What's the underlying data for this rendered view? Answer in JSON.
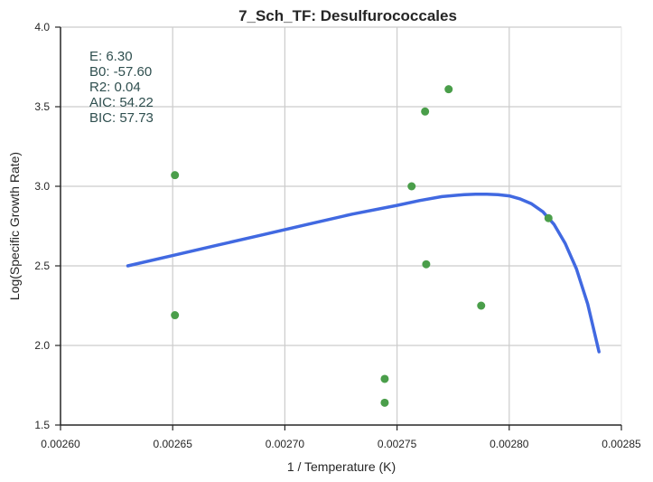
{
  "chart_data": {
    "type": "scatter",
    "title": "7_Sch_TF: Desulfurococcales",
    "xlabel": "1 / Temperature (K)",
    "ylabel": "Log(Specific Growth Rate)",
    "xlim": [
      0.0026,
      0.00285
    ],
    "ylim": [
      1.5,
      4.0
    ],
    "xticks": [
      0.0026,
      0.00265,
      0.0027,
      0.00275,
      0.0028,
      0.00285
    ],
    "xtick_labels": [
      "0.00260",
      "0.00265",
      "0.00270",
      "0.00275",
      "0.00280",
      "0.00285"
    ],
    "yticks": [
      1.5,
      2.0,
      2.5,
      3.0,
      3.5,
      4.0
    ],
    "ytick_labels": [
      "1.5",
      "2.0",
      "2.5",
      "3.0",
      "3.5",
      "4.0"
    ],
    "grid": true,
    "colors": {
      "points": "#4a9e4a",
      "curve": "#4169e1",
      "stats_text": "#2f4f4f",
      "axis": "#262626",
      "grid": "#cccccc"
    },
    "stats": [
      "E:  6.30",
      "B0:  -57.60",
      "R2:  0.04",
      "AIC: 54.22",
      "BIC: 57.73"
    ],
    "series": [
      {
        "type": "scatter",
        "x": [
          0.002651,
          0.002651,
          0.0027445,
          0.0027445,
          0.0027565,
          0.0027625,
          0.002763,
          0.002773,
          0.0027875,
          0.0028175
        ],
        "y": [
          3.07,
          2.19,
          1.79,
          1.64,
          3.0,
          3.47,
          2.51,
          3.61,
          2.25,
          2.8
        ]
      },
      {
        "type": "line",
        "x": [
          0.00263,
          0.00265,
          0.00267,
          0.00269,
          0.00271,
          0.00273,
          0.00275,
          0.00276,
          0.00277,
          0.00278,
          0.002785,
          0.00279,
          0.002795,
          0.0028,
          0.002805,
          0.00281,
          0.002815,
          0.00282,
          0.002825,
          0.00283,
          0.002835,
          0.00284
        ],
        "y": [
          2.5,
          2.565,
          2.63,
          2.695,
          2.76,
          2.825,
          2.88,
          2.91,
          2.935,
          2.948,
          2.95,
          2.95,
          2.948,
          2.94,
          2.92,
          2.89,
          2.84,
          2.76,
          2.64,
          2.48,
          2.26,
          1.96
        ]
      }
    ]
  }
}
